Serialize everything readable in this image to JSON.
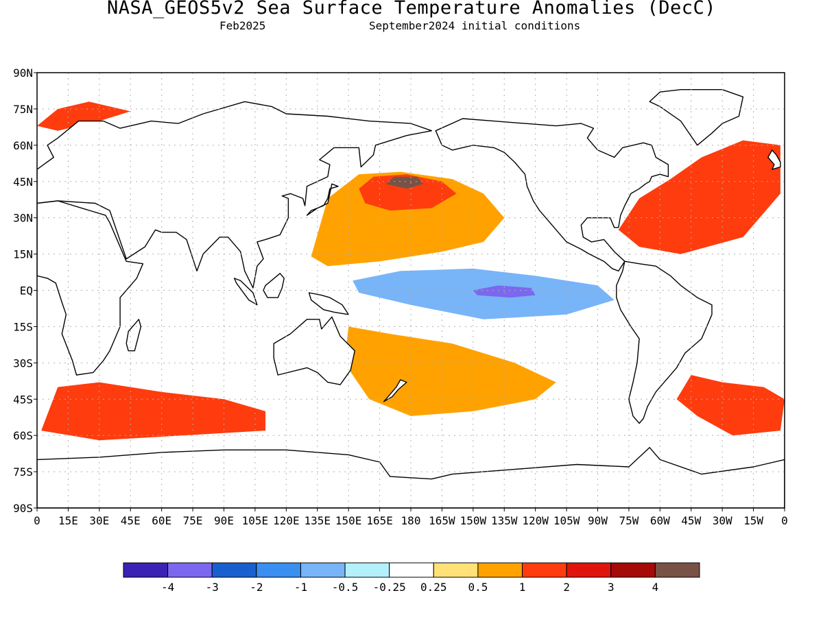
{
  "header": {
    "title": "NASA_GEOS5v2 Sea Surface Temperature Anomalies (DecC)",
    "subtitle_left": "Feb2025",
    "subtitle_right": "September2024 initial conditions"
  },
  "axes": {
    "lat_labels": [
      {
        "lat": 90,
        "text": "90N"
      },
      {
        "lat": 75,
        "text": "75N"
      },
      {
        "lat": 60,
        "text": "60N"
      },
      {
        "lat": 45,
        "text": "45N"
      },
      {
        "lat": 30,
        "text": "30N"
      },
      {
        "lat": 15,
        "text": "15N"
      },
      {
        "lat": 0,
        "text": "EQ"
      },
      {
        "lat": -15,
        "text": "15S"
      },
      {
        "lat": -30,
        "text": "30S"
      },
      {
        "lat": -45,
        "text": "45S"
      },
      {
        "lat": -60,
        "text": "60S"
      },
      {
        "lat": -75,
        "text": "75S"
      },
      {
        "lat": -90,
        "text": "90S"
      }
    ],
    "lon_labels": [
      {
        "lon": 0,
        "text": "0"
      },
      {
        "lon": 15,
        "text": "15E"
      },
      {
        "lon": 30,
        "text": "30E"
      },
      {
        "lon": 45,
        "text": "45E"
      },
      {
        "lon": 60,
        "text": "60E"
      },
      {
        "lon": 75,
        "text": "75E"
      },
      {
        "lon": 90,
        "text": "90E"
      },
      {
        "lon": 105,
        "text": "105E"
      },
      {
        "lon": 120,
        "text": "120E"
      },
      {
        "lon": 135,
        "text": "135E"
      },
      {
        "lon": 150,
        "text": "150E"
      },
      {
        "lon": 165,
        "text": "165E"
      },
      {
        "lon": 180,
        "text": "180"
      },
      {
        "lon": 195,
        "text": "165W"
      },
      {
        "lon": 210,
        "text": "150W"
      },
      {
        "lon": 225,
        "text": "135W"
      },
      {
        "lon": 240,
        "text": "120W"
      },
      {
        "lon": 255,
        "text": "105W"
      },
      {
        "lon": 270,
        "text": "90W"
      },
      {
        "lon": 285,
        "text": "75W"
      },
      {
        "lon": 300,
        "text": "60W"
      },
      {
        "lon": 315,
        "text": "45W"
      },
      {
        "lon": 330,
        "text": "30W"
      },
      {
        "lon": 345,
        "text": "15W"
      },
      {
        "lon": 360,
        "text": "0"
      }
    ]
  },
  "colorbar": {
    "colors": [
      "#3b22b4",
      "#7b68ee",
      "#1a5fd0",
      "#3a8ff0",
      "#78b4f8",
      "#b4f0fa",
      "#ffffff",
      "#ffe178",
      "#ffa200",
      "#ff3c0e",
      "#e0140c",
      "#a50a08",
      "#785246"
    ],
    "labels": [
      "-4",
      "-3",
      "-2",
      "-1",
      "-0.5",
      "-0.25",
      "0.25",
      "0.5",
      "1",
      "2",
      "3",
      "4"
    ]
  },
  "map_colors": {
    "land": "#ffffff",
    "coast": "#000000",
    "grid": "#b0b0b0"
  },
  "anomaly_fields": [
    {
      "name": "north-pacific-warm",
      "level": "0.5",
      "color": "#ffa200",
      "polygon": [
        [
          132,
          14
        ],
        [
          140,
          38
        ],
        [
          155,
          48
        ],
        [
          175,
          49
        ],
        [
          200,
          46
        ],
        [
          215,
          40
        ],
        [
          225,
          30
        ],
        [
          215,
          20
        ],
        [
          195,
          16
        ],
        [
          165,
          12
        ],
        [
          140,
          10
        ]
      ]
    },
    {
      "name": "north-pacific-core",
      "level": "2",
      "color": "#ff3c0e",
      "polygon": [
        [
          155,
          42
        ],
        [
          162,
          47
        ],
        [
          178,
          48
        ],
        [
          195,
          45
        ],
        [
          202,
          40
        ],
        [
          190,
          34
        ],
        [
          170,
          33
        ],
        [
          158,
          36
        ]
      ]
    },
    {
      "name": "north-pacific-peak",
      "level": "4",
      "color": "#785246",
      "polygon": [
        [
          168,
          44
        ],
        [
          172,
          47
        ],
        [
          183,
          47
        ],
        [
          186,
          44
        ],
        [
          178,
          42
        ]
      ]
    },
    {
      "name": "equatorial-cold",
      "level": "-1",
      "color": "#78b4f8",
      "polygon": [
        [
          152,
          4
        ],
        [
          175,
          8
        ],
        [
          210,
          9
        ],
        [
          240,
          6
        ],
        [
          270,
          2
        ],
        [
          278,
          -4
        ],
        [
          255,
          -10
        ],
        [
          215,
          -12
        ],
        [
          180,
          -6
        ],
        [
          155,
          -1
        ]
      ]
    },
    {
      "name": "equatorial-cold-core",
      "level": "-3",
      "color": "#7b68ee",
      "polygon": [
        [
          210,
          0
        ],
        [
          222,
          2
        ],
        [
          238,
          1
        ],
        [
          240,
          -2
        ],
        [
          228,
          -3
        ],
        [
          212,
          -2
        ]
      ]
    },
    {
      "name": "south-indian-warm",
      "level": "1",
      "color": "#ff3c0e",
      "polygon": [
        [
          10,
          -40
        ],
        [
          30,
          -38
        ],
        [
          60,
          -42
        ],
        [
          90,
          -45
        ],
        [
          110,
          -50
        ],
        [
          110,
          -58
        ],
        [
          70,
          -60
        ],
        [
          30,
          -62
        ],
        [
          2,
          -58
        ]
      ]
    },
    {
      "name": "south-pacific-warm",
      "level": "0.5",
      "color": "#ffa200",
      "polygon": [
        [
          150,
          -15
        ],
        [
          170,
          -18
        ],
        [
          200,
          -22
        ],
        [
          230,
          -30
        ],
        [
          250,
          -38
        ],
        [
          240,
          -45
        ],
        [
          210,
          -50
        ],
        [
          180,
          -52
        ],
        [
          160,
          -45
        ],
        [
          148,
          -30
        ]
      ]
    },
    {
      "name": "north-atlantic-warm",
      "level": "1",
      "color": "#ff3c0e",
      "polygon": [
        [
          280,
          25
        ],
        [
          290,
          38
        ],
        [
          305,
          46
        ],
        [
          320,
          55
        ],
        [
          340,
          62
        ],
        [
          358,
          60
        ],
        [
          358,
          40
        ],
        [
          340,
          22
        ],
        [
          310,
          15
        ],
        [
          290,
          18
        ]
      ]
    },
    {
      "name": "south-atlantic-warm",
      "level": "1",
      "color": "#ff3c0e",
      "polygon": [
        [
          315,
          -35
        ],
        [
          330,
          -38
        ],
        [
          350,
          -40
        ],
        [
          360,
          -45
        ],
        [
          358,
          -58
        ],
        [
          335,
          -60
        ],
        [
          318,
          -52
        ],
        [
          308,
          -45
        ]
      ]
    },
    {
      "name": "arctic-warm",
      "level": "1",
      "color": "#ff3c0e",
      "polygon": [
        [
          0,
          68
        ],
        [
          10,
          75
        ],
        [
          25,
          78
        ],
        [
          45,
          74
        ],
        [
          30,
          70
        ],
        [
          10,
          66
        ]
      ]
    }
  ]
}
